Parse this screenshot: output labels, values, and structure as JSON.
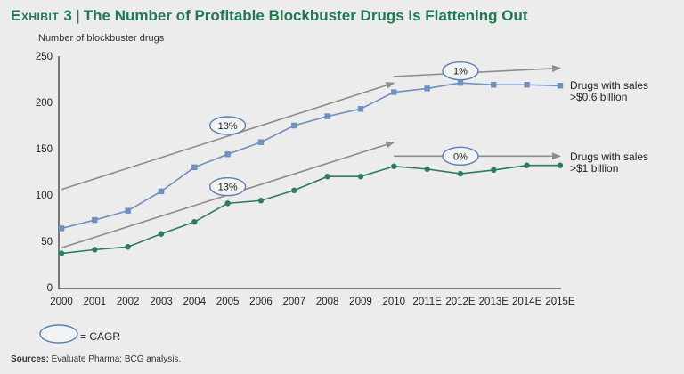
{
  "header": {
    "exhibit": "Exhibit 3",
    "separator": "|",
    "title": "The Number of Profitable Blockbuster Drugs Is Flattening Out"
  },
  "legend": {
    "cagr_label": "= CAGR"
  },
  "footer": {
    "sources_label": "Sources:",
    "sources_text": "Evaluate Pharma; BCG analysis."
  },
  "colors": {
    "title": "#1f7a52",
    "series_0_6": "#6e8fbf",
    "series_1": "#2e7d5a",
    "trend_arrow": "#8c8c8c",
    "cagr_ellipse": "#5a7fb0"
  },
  "chart_data": {
    "type": "line",
    "title": "The Number of Profitable Blockbuster Drugs Is Flattening Out",
    "xlabel": "",
    "ylabel": "Number of blockbuster drugs",
    "ylim": [
      0,
      250
    ],
    "yticks": [
      0,
      50,
      100,
      150,
      200,
      250
    ],
    "grid": false,
    "categories": [
      "2000",
      "2001",
      "2002",
      "2003",
      "2004",
      "2005",
      "2006",
      "2007",
      "2008",
      "2009",
      "2010",
      "2011E",
      "2012E",
      "2013E",
      "2014E",
      "2015E"
    ],
    "series": [
      {
        "name": "Drugs with sales >$0.6 billion",
        "label_line1": "Drugs with sales",
        "label_line2": ">$0.6 billion",
        "marker": "square",
        "values": [
          64,
          73,
          83,
          104,
          130,
          144,
          157,
          175,
          185,
          193,
          211,
          215,
          221,
          219,
          219,
          218
        ]
      },
      {
        "name": "Drugs with sales >$1 billion",
        "label_line1": "Drugs with sales",
        "label_line2": ">$1 billion",
        "marker": "circle",
        "values": [
          37,
          41,
          44,
          58,
          71,
          91,
          94,
          105,
          120,
          120,
          131,
          128,
          123,
          127,
          132,
          132
        ]
      }
    ],
    "annotations": [
      {
        "type": "cagr-arrow",
        "series": 0,
        "label": "13%",
        "from": [
          "2000",
          106
        ],
        "to": [
          "2010",
          221
        ],
        "ellipse_at": [
          "2005",
          175
        ]
      },
      {
        "type": "cagr-arrow",
        "series": 0,
        "label": "1%",
        "from": [
          "2010",
          228
        ],
        "to": [
          "2015E",
          237
        ],
        "ellipse_at": [
          "2012E",
          234
        ]
      },
      {
        "type": "cagr-arrow",
        "series": 1,
        "label": "13%",
        "from": [
          "2000",
          43
        ],
        "to": [
          "2010",
          157
        ],
        "ellipse_at": [
          "2005",
          109
        ]
      },
      {
        "type": "cagr-arrow",
        "series": 1,
        "label": "0%",
        "from": [
          "2010",
          142
        ],
        "to": [
          "2015E",
          142
        ],
        "ellipse_at": [
          "2012E",
          142
        ]
      }
    ]
  }
}
